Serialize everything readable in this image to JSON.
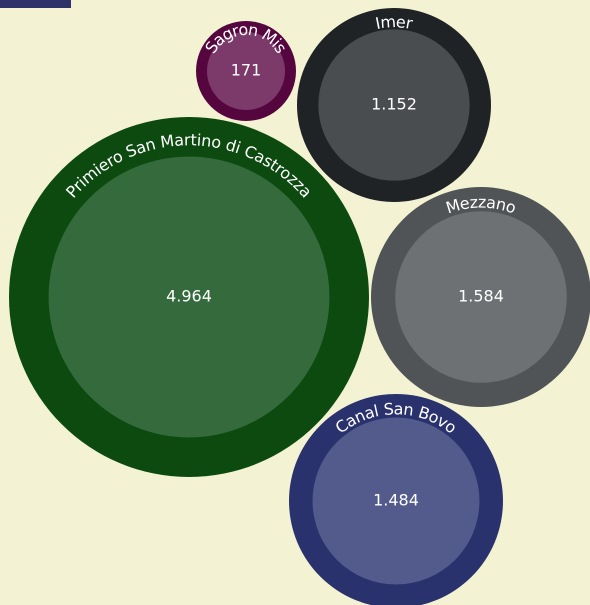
{
  "chart_data": {
    "type": "bubble",
    "title": "",
    "bubbles": [
      {
        "name": "Primiero San Martino di Castrozza",
        "value": 4964,
        "label": "4.964",
        "ring_color": "#0d4a10",
        "fill_color": "#356b3c"
      },
      {
        "name": "Sagron Mis",
        "value": 171,
        "label": "171",
        "ring_color": "#55063f",
        "fill_color": "#7b3a6a"
      },
      {
        "name": "Imer",
        "value": 1152,
        "label": "1.152",
        "ring_color": "#202326",
        "fill_color": "#4a4d50"
      },
      {
        "name": "Mezzano",
        "value": 1584,
        "label": "1.584",
        "ring_color": "#505456",
        "fill_color": "#6d7173"
      },
      {
        "name": "Canal San Bovo",
        "value": 1484,
        "label": "1.484",
        "ring_color": "#2a326d",
        "fill_color": "#535a8c"
      }
    ]
  },
  "colors": {
    "background": "#f3f3d3",
    "corner_tab": "#2e3269"
  }
}
